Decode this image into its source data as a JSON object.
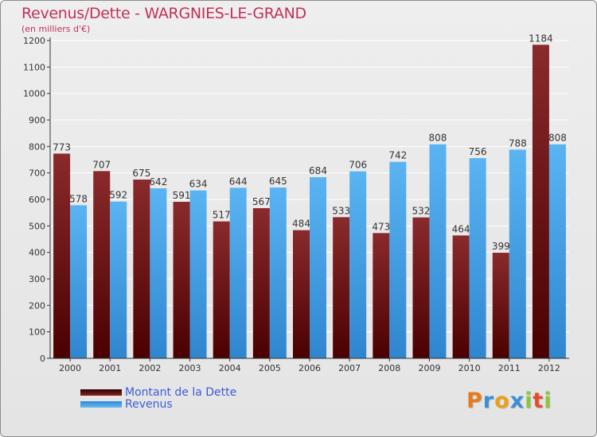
{
  "chart_data": {
    "type": "bar",
    "title": "Revenus/Dette - WARGNIES-LE-GRAND",
    "subtitle": "(en milliers d'€)",
    "categories": [
      "2000",
      "2001",
      "2002",
      "2003",
      "2004",
      "2005",
      "2006",
      "2007",
      "2008",
      "2009",
      "2010",
      "2011",
      "2012"
    ],
    "series": [
      {
        "name": "Montant de la Dette",
        "color": "#7a1a1c",
        "values": [
          773,
          707,
          675,
          591,
          517,
          567,
          484,
          533,
          473,
          532,
          464,
          399,
          1184
        ],
        "labels": [
          "773",
          "707",
          "675",
          "591",
          "517",
          "567",
          "484",
          "533",
          "473",
          "532",
          "464",
          "399",
          "1184"
        ]
      },
      {
        "name": "Revenus",
        "color": "#4aa3e8",
        "values": [
          578,
          592,
          642,
          634,
          644,
          645,
          684,
          706,
          742,
          808,
          756,
          788,
          808
        ],
        "labels": [
          "578",
          "592",
          "642",
          "634",
          "644",
          "645",
          "684",
          "706",
          "742",
          "808",
          "756",
          "788",
          "808"
        ]
      }
    ],
    "ylim": [
      0,
      1200
    ],
    "yticks": [
      "0",
      "100",
      "200",
      "300",
      "400",
      "500",
      "600",
      "700",
      "800",
      "900",
      "1000",
      "1100",
      "1200"
    ],
    "grid": "horizontal",
    "legend_position": "bottom-left"
  },
  "brand": {
    "letters": [
      "P",
      "r",
      "o",
      "x",
      "i",
      "t",
      "i"
    ],
    "colors": [
      "#e87a1e",
      "#3a8fd6",
      "#e8a21e",
      "#3a8fd6",
      "#8cc63f",
      "#e84a2e",
      "#8cc63f"
    ]
  }
}
